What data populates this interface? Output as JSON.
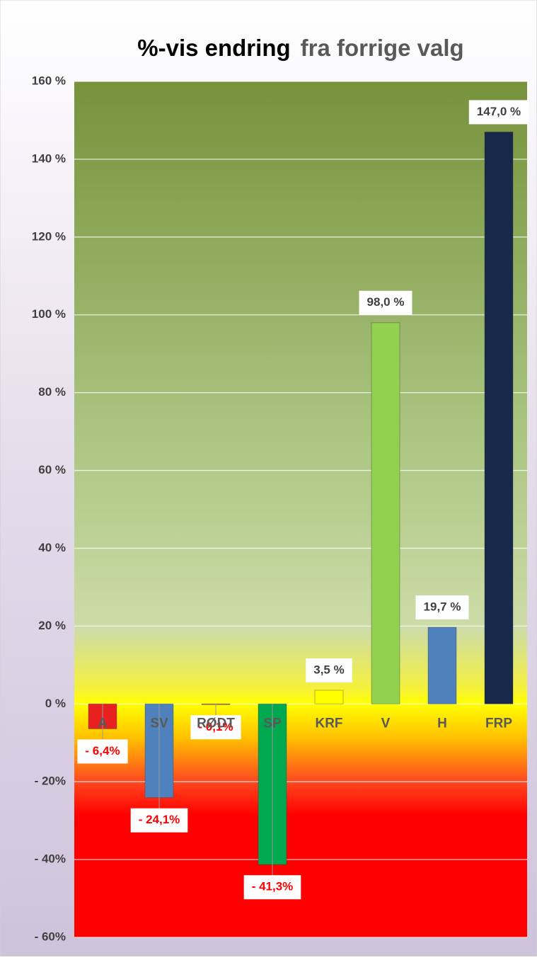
{
  "chart_data": {
    "type": "bar",
    "title": "%-vis endring",
    "subtitle": "fra forrige valg",
    "categories": [
      "A",
      "SV",
      "RØDT",
      "SP",
      "KRF",
      "V",
      "H",
      "FRP"
    ],
    "values": [
      -6.4,
      -24.1,
      -0.1,
      -41.3,
      3.5,
      98.0,
      19.7,
      147.0
    ],
    "value_labels": [
      "- 6,4%",
      "- 24,1%",
      "- 0,1%",
      "- 41,3%",
      "3,5 %",
      "98,0 %",
      "19,7 %",
      "147,0 %"
    ],
    "colors": [
      "#e8201f",
      "#4f81bd",
      "#c0504d",
      "#00a850",
      "#ffff00",
      "#92d050",
      "#4f81bd",
      "#17294a"
    ],
    "ylim": [
      -60,
      160
    ],
    "yticks": [
      {
        "value": -60,
        "label": "- 60%"
      },
      {
        "value": -40,
        "label": "- 40%"
      },
      {
        "value": -20,
        "label": "- 20%"
      },
      {
        "value": 0,
        "label": "0 %"
      },
      {
        "value": 20,
        "label": "20 %"
      },
      {
        "value": 40,
        "label": "40 %"
      },
      {
        "value": 60,
        "label": "60 %"
      },
      {
        "value": 80,
        "label": "80 %"
      },
      {
        "value": 100,
        "label": "100 %"
      },
      {
        "value": 120,
        "label": "120 %"
      },
      {
        "value": 140,
        "label": "140 %"
      },
      {
        "value": 160,
        "label": "160 %"
      }
    ],
    "grid": true
  }
}
